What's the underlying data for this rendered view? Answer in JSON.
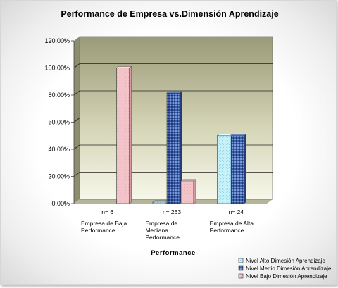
{
  "chart_data": {
    "type": "bar",
    "title": "Performance de Empresa vs.Dimensión Aprendizaje",
    "xlabel": "Performance",
    "ylabel": "",
    "ylim": [
      0,
      1.2
    ],
    "y_ticks": [
      "0.00%",
      "20.00%",
      "40.00%",
      "60.00%",
      "80.00%",
      "100.00%",
      "120.00%"
    ],
    "grid": true,
    "legend_position": "bottom-right",
    "categories": [
      "Empresa de Baja Performance",
      "Empresa de Mediana Performance",
      "Empresa de Alta Performance"
    ],
    "category_lines": [
      [
        "n= 6",
        "",
        "Empresa de Baja",
        "Performance"
      ],
      [
        "n= 263",
        "",
        "Empresa de",
        "Mediana",
        "Performance"
      ],
      [
        "n= 24",
        "",
        "Empresa de Alta",
        "Performance"
      ]
    ],
    "series": [
      {
        "name": "Nivel Alto Dimesión Aprendizaje",
        "values": [
          0.0,
          0.011,
          0.5
        ],
        "color": "#c8f0f8",
        "pattern": "light"
      },
      {
        "name": "Nivel Medio Dimesión Aprendizaje",
        "values": [
          0.0,
          0.815,
          0.5
        ],
        "color": "#3c5fa8",
        "pattern": "dark"
      },
      {
        "name": "Nivel Bajo Dimesión Aprendizaje",
        "values": [
          1.0,
          0.167,
          0.0
        ],
        "color": "#f2c3c8",
        "pattern": "pink"
      }
    ]
  }
}
